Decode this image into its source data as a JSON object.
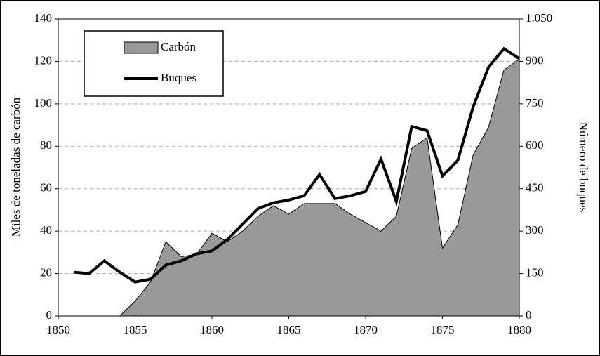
{
  "chart_data": {
    "type": "area",
    "ylabel": "Miles de toneladas de carbón",
    "y2label": "Número de buques",
    "x": [
      1851,
      1852,
      1853,
      1854,
      1855,
      1856,
      1857,
      1858,
      1859,
      1860,
      1861,
      1862,
      1863,
      1864,
      1865,
      1866,
      1867,
      1868,
      1869,
      1870,
      1871,
      1872,
      1873,
      1874,
      1875,
      1876,
      1877,
      1878,
      1879,
      1880
    ],
    "series": [
      {
        "name": "Carbón",
        "type": "area",
        "color": "#999999",
        "values": [
          null,
          null,
          null,
          0,
          7,
          16,
          35,
          28,
          29,
          39,
          35,
          40,
          47,
          52,
          48,
          53,
          53,
          53,
          48,
          44,
          40,
          47,
          79,
          84,
          32,
          43,
          76,
          89,
          116,
          121
        ]
      },
      {
        "name": "Buques",
        "type": "line",
        "axis": "y2",
        "color": "#000000",
        "values": [
          155,
          150,
          195,
          155,
          120,
          130,
          180,
          195,
          220,
          230,
          270,
          325,
          380,
          400,
          410,
          425,
          500,
          415,
          425,
          440,
          555,
          405,
          670,
          655,
          495,
          550,
          740,
          880,
          945,
          910
        ]
      }
    ],
    "xlim": [
      1850,
      1880
    ],
    "xticks": [
      1850,
      1855,
      1860,
      1865,
      1870,
      1875,
      1880
    ],
    "ylim": [
      0,
      140
    ],
    "yticks": [
      0,
      20,
      40,
      60,
      80,
      100,
      120,
      140
    ],
    "y2lim": [
      0,
      1050
    ],
    "y2ticks": [
      0,
      150,
      300,
      450,
      600,
      750,
      900,
      {
        "value": 1050,
        "label": "1.050"
      }
    ],
    "grid": true,
    "legend": "upper left"
  }
}
